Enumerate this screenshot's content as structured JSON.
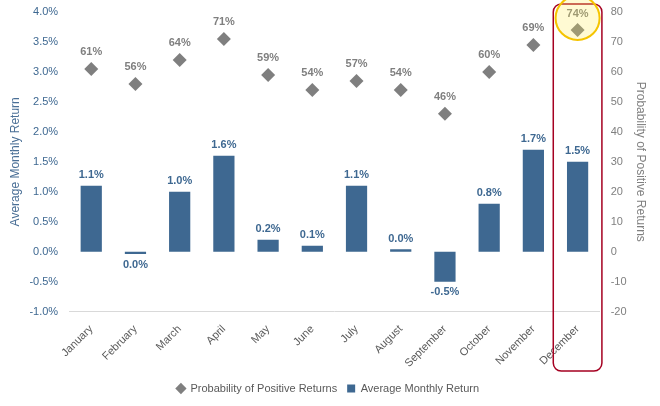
{
  "chart_data": {
    "type": "bar",
    "categories": [
      "January",
      "February",
      "March",
      "April",
      "May",
      "June",
      "July",
      "August",
      "September",
      "October",
      "November",
      "December"
    ],
    "series": [
      {
        "name": "Average Monthly Return",
        "type": "bar",
        "color": "#3e6891",
        "values": [
          1.1,
          -0.04,
          1.0,
          1.6,
          0.2,
          0.1,
          1.1,
          0.04,
          -0.5,
          0.8,
          1.7,
          1.5
        ],
        "value_labels": [
          "1.1%",
          "0.0%",
          "1.0%",
          "1.6%",
          "0.2%",
          "0.1%",
          "1.1%",
          "0.0%",
          "-0.5%",
          "0.8%",
          "1.7%",
          "1.5%"
        ]
      },
      {
        "name": "Probability of Positive Returns",
        "type": "scatter",
        "marker": "diamond",
        "color": "#7f7f7f",
        "axis": "y2",
        "values": [
          61,
          56,
          64,
          71,
          59,
          54,
          57,
          54,
          46,
          60,
          69,
          74
        ],
        "value_labels": [
          "61%",
          "56%",
          "64%",
          "71%",
          "59%",
          "54%",
          "57%",
          "54%",
          "46%",
          "60%",
          "69%",
          "74%"
        ]
      }
    ],
    "y_label": "Average Monthly Return",
    "y2_label": "Probability of Positive Returns",
    "ylim": [
      -1,
      4
    ],
    "yticks": [
      {
        "value": -1,
        "label": "-1.0%"
      },
      {
        "value": -0.5,
        "label": "-0.5%"
      },
      {
        "value": 0,
        "label": "0.0%"
      },
      {
        "value": 0.5,
        "label": "0.5%"
      },
      {
        "value": 1,
        "label": "1.0%"
      },
      {
        "value": 1.5,
        "label": "1.5%"
      },
      {
        "value": 2,
        "label": "2.0%"
      },
      {
        "value": 2.5,
        "label": "2.5%"
      },
      {
        "value": 3,
        "label": "3.0%"
      },
      {
        "value": 3.5,
        "label": "3.5%"
      },
      {
        "value": 4,
        "label": "4.0%"
      }
    ],
    "y2lim": [
      -20,
      80
    ],
    "y2ticks": [
      -20,
      -10,
      0,
      10,
      20,
      30,
      40,
      50,
      60,
      70,
      80
    ],
    "grid": false,
    "legend": "bottom",
    "data_labels": true
  }
}
